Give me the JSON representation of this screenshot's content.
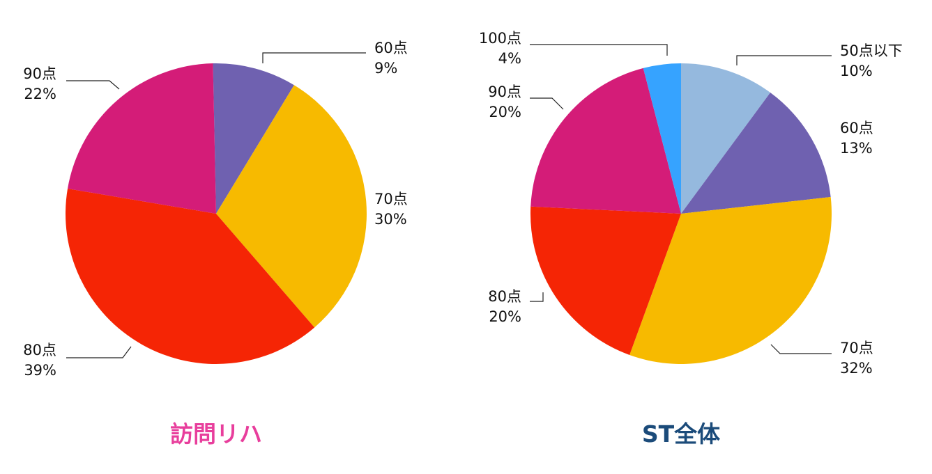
{
  "chart_data": [
    {
      "type": "pie",
      "title": "訪問リハ",
      "title_color": "#e83e9c",
      "slices": [
        {
          "label": "60点",
          "pct": "9%",
          "value": 9,
          "color": "#6f61b0"
        },
        {
          "label": "70点",
          "pct": "30%",
          "value": 30,
          "color": "#f7ba00"
        },
        {
          "label": "80点",
          "pct": "39%",
          "value": 39,
          "color": "#f52505"
        },
        {
          "label": "90点",
          "pct": "22%",
          "value": 22,
          "color": "#d41c78"
        }
      ]
    },
    {
      "type": "pie",
      "title": "ST全体",
      "title_color": "#1b4b7a",
      "slices": [
        {
          "label": "50点以下",
          "pct": "10%",
          "value": 10,
          "color": "#95b9de"
        },
        {
          "label": "60点",
          "pct": "13%",
          "value": 13,
          "color": "#6f61b0"
        },
        {
          "label": "70点",
          "pct": "32%",
          "value": 32,
          "color": "#f7ba00"
        },
        {
          "label": "80点",
          "pct": "20%",
          "value": 20,
          "color": "#f52505"
        },
        {
          "label": "90点",
          "pct": "20%",
          "value": 20,
          "color": "#d41c78"
        },
        {
          "label": "100点",
          "pct": "4%",
          "value": 4,
          "color": "#36a3ff"
        }
      ]
    }
  ]
}
